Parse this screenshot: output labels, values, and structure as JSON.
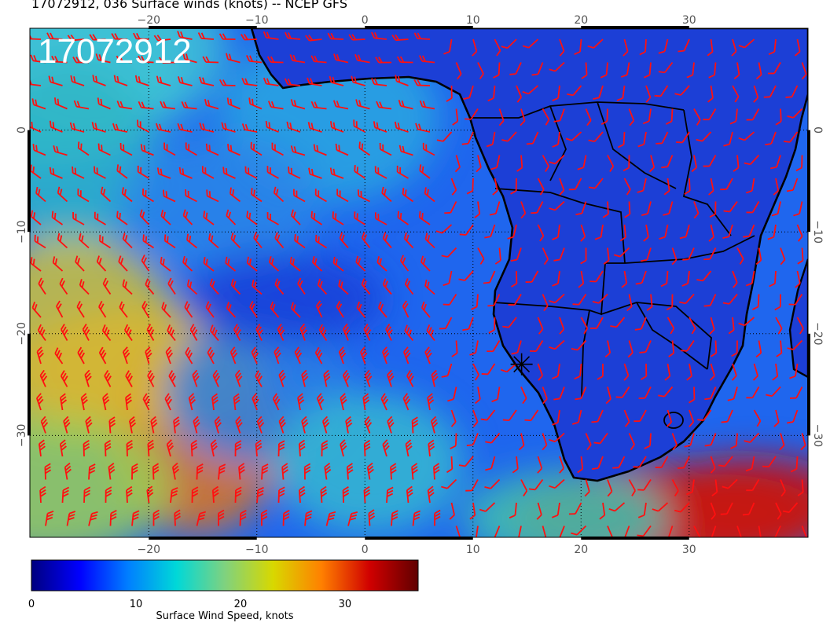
{
  "header": {
    "title": "17072912, 036 Surface winds (knots) -- NCEP GFS",
    "stamp": "17072912"
  },
  "map": {
    "region": "South Atlantic / southern Africa",
    "lon_range": [
      -31,
      41
    ],
    "lat_range": [
      -40,
      10
    ],
    "grid_style": "dotted",
    "x_ticks": [
      {
        "v": -20,
        "label": "−20"
      },
      {
        "v": -10,
        "label": "−10"
      },
      {
        "v": 0,
        "label": "0"
      },
      {
        "v": 10,
        "label": "10"
      },
      {
        "v": 20,
        "label": "20"
      },
      {
        "v": 30,
        "label": "30"
      }
    ],
    "y_ticks": [
      {
        "v": 0,
        "label": "0"
      },
      {
        "v": -10,
        "label": "−10"
      },
      {
        "v": -20,
        "label": "−20"
      },
      {
        "v": -30,
        "label": "−30"
      }
    ],
    "barb_color": "#ff1010",
    "coast_color": "#000000",
    "marker_symbol": "star",
    "marker_lon": 14.5,
    "marker_lat": -23
  },
  "colorbar": {
    "title": "Surface Wind Speed, knots",
    "min": 0,
    "max": 37,
    "ticks": [
      {
        "v": 0,
        "label": "0"
      },
      {
        "v": 10,
        "label": "10"
      },
      {
        "v": 20,
        "label": "20"
      },
      {
        "v": 30,
        "label": "30"
      }
    ],
    "stops": [
      "#00007f",
      "#0000ff",
      "#007fff",
      "#00d8d8",
      "#7fd27f",
      "#d8d800",
      "#ff8000",
      "#d00000",
      "#600000"
    ]
  }
}
